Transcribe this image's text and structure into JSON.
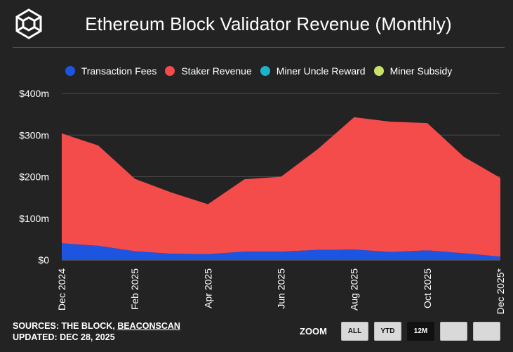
{
  "header": {
    "title": "Ethereum Block Validator Revenue (Monthly)"
  },
  "colors": {
    "background": "#232323",
    "divider": "#7b2cb0",
    "transaction_fees": "#1e55e0",
    "staker_revenue": "#f44b4b",
    "miner_uncle_reward": "#1ab3c8",
    "miner_subsidy": "#c9e265"
  },
  "legend": [
    {
      "label": "Transaction Fees",
      "color": "#1e55e0"
    },
    {
      "label": "Staker Revenue",
      "color": "#f44b4b"
    },
    {
      "label": "Miner Uncle Reward",
      "color": "#1ab3c8"
    },
    {
      "label": "Miner Subsidy",
      "color": "#c9e265"
    }
  ],
  "chart_data": {
    "type": "area",
    "stacked": true,
    "title": "Ethereum Block Validator Revenue (Monthly)",
    "x": [
      "Dec 2024",
      "Jan 2025",
      "Feb 2025",
      "Mar 2025",
      "Apr 2025",
      "May 2025",
      "Jun 2025",
      "Jul 2025",
      "Aug 2025",
      "Sep 2025",
      "Oct 2025",
      "Nov 2025",
      "Dec 2025*"
    ],
    "x_tick_labels": [
      "Dec 2024",
      "Feb 2025",
      "Apr 2025",
      "Jun 2025",
      "Aug 2025",
      "Oct 2025",
      "Dec 2025*"
    ],
    "y_tick_labels": [
      "$0",
      "$100m",
      "$200m",
      "$300m",
      "$400m"
    ],
    "ylim": [
      0,
      400
    ],
    "y_unit": "$m",
    "grid": true,
    "legend_position": "top",
    "series": [
      {
        "name": "Transaction Fees",
        "values": [
          40,
          34,
          21,
          15,
          14,
          20,
          20,
          24,
          25,
          19,
          23,
          16,
          8
        ]
      },
      {
        "name": "Staker Revenue",
        "values": [
          264,
          241,
          174,
          147,
          120,
          174,
          180,
          242,
          318,
          313,
          306,
          232,
          189
        ]
      },
      {
        "name": "Miner Uncle Reward",
        "values": [
          0,
          0,
          0,
          0,
          0,
          0,
          0,
          0,
          0,
          0,
          0,
          0,
          0
        ]
      },
      {
        "name": "Miner Subsidy",
        "values": [
          0,
          0,
          0,
          0,
          0,
          0,
          0,
          0,
          0,
          0,
          0,
          0,
          0
        ]
      }
    ]
  },
  "footer": {
    "sources_prefix": "SOURCES: THE BLOCK, ",
    "sources_link": "BEACONSCAN",
    "updated": "UPDATED: DEC 28, 2025"
  },
  "zoom": {
    "label": "ZOOM",
    "buttons": [
      {
        "label": "ALL",
        "active": false
      },
      {
        "label": "YTD",
        "active": false
      },
      {
        "label": "12M",
        "active": true
      },
      {
        "label": "",
        "active": false
      },
      {
        "label": "",
        "active": false
      }
    ]
  }
}
